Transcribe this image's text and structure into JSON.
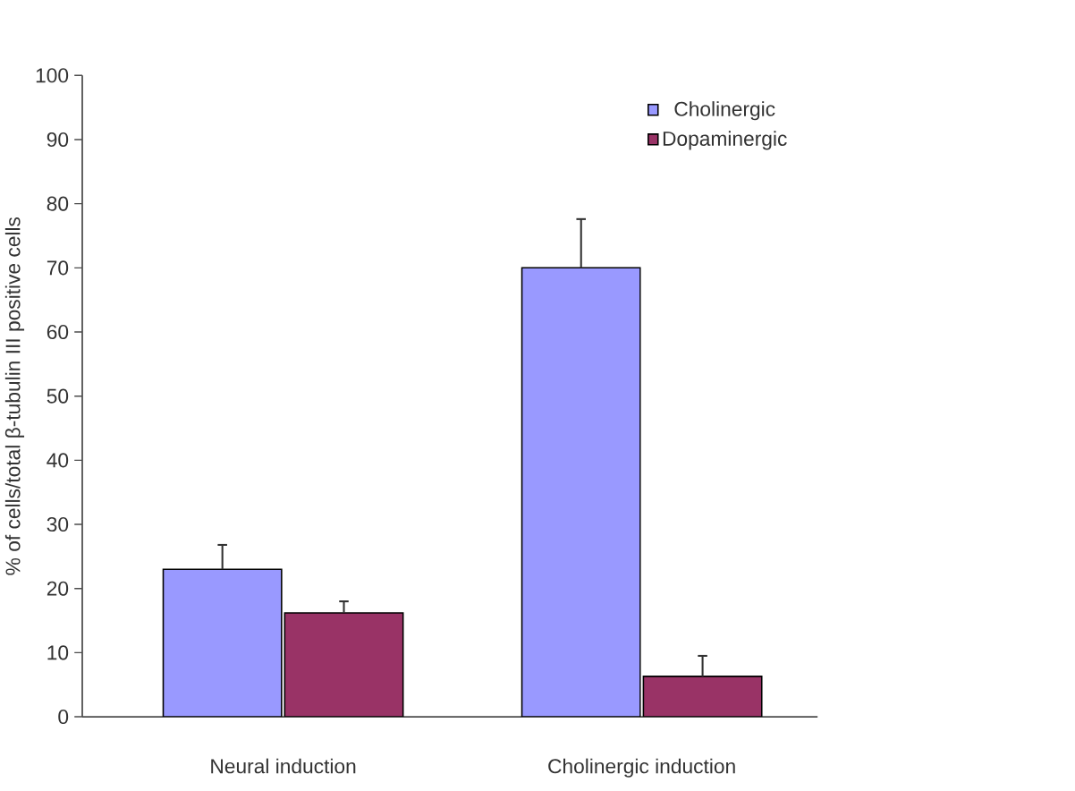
{
  "chart_data": {
    "type": "bar",
    "ylabel": "% of cells/total β-tubulin III positive cells",
    "categories": [
      "Neural induction",
      "Cholinergic induction"
    ],
    "series": [
      {
        "name": "Cholinergic",
        "color": "#9999ff",
        "values": [
          23,
          70
        ],
        "errors": [
          3.8,
          7.6
        ]
      },
      {
        "name": "Dopaminergic",
        "color": "#993366",
        "values": [
          16.2,
          6.3
        ],
        "errors": [
          1.8,
          3.2
        ]
      }
    ],
    "ylim": [
      0,
      100
    ],
    "yticks": [
      0,
      10,
      20,
      30,
      40,
      50,
      60,
      70,
      80,
      90,
      100
    ],
    "grid": false,
    "legend": "top right"
  }
}
